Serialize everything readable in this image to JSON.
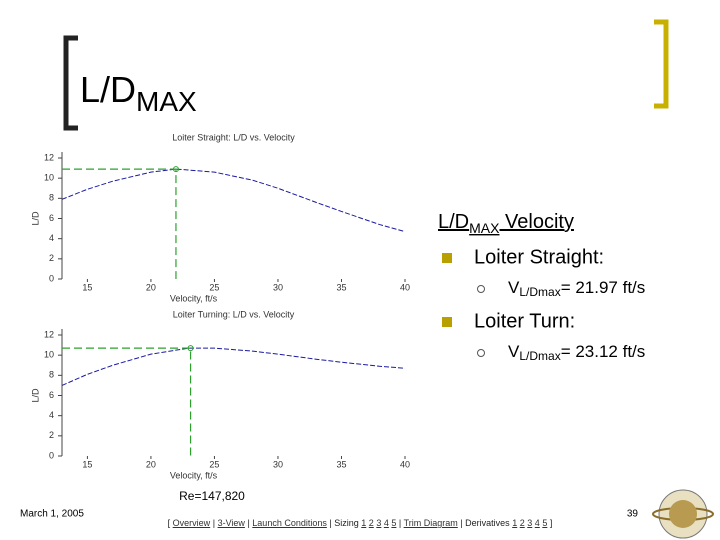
{
  "slide": {
    "title": {
      "main": "L/D",
      "sub": "MAX"
    },
    "heading": {
      "main": "L/D",
      "sub": "MAX",
      "rest": " Velocity"
    },
    "bullets": [
      {
        "text": "Loiter Straight:",
        "detail": {
          "main": "V",
          "sub": "L/Dmax",
          "rest": "= 21.97 ft/s"
        }
      },
      {
        "text": "Loiter Turn:",
        "detail": {
          "main": "V",
          "sub": "L/Dmax",
          "rest": "= 23.12 ft/s"
        }
      }
    ],
    "date": "March 1, 2005",
    "page": "39"
  },
  "footer": {
    "open": "[",
    "close": "]",
    "separator": "|",
    "items": [
      [
        "Overview"
      ],
      [
        "3-View"
      ],
      [
        "Launch Conditions"
      ],
      [
        "Sizing",
        "1",
        "2",
        "3",
        "4",
        "5"
      ],
      [
        "Trim Diagram"
      ],
      [
        "Derivatives",
        "1",
        "2",
        "3",
        "4",
        "5"
      ]
    ]
  },
  "chart_data": [
    {
      "type": "line",
      "title": "Loiter Straight: L/D vs. Velocity",
      "xlabel": "Velocity, ft/s",
      "ylabel": "L/D",
      "x": [
        13,
        15,
        17,
        20,
        22,
        25,
        28,
        30,
        33,
        35,
        38,
        40
      ],
      "series": [
        {
          "color": "#1a1aa0",
          "values": [
            7.9,
            8.9,
            9.7,
            10.6,
            10.9,
            10.6,
            9.8,
            9.0,
            7.6,
            6.7,
            5.4,
            4.7
          ]
        }
      ],
      "marker": {
        "x": 21.97,
        "y": 10.9,
        "color": "#2ca02c"
      },
      "xlim": [
        13,
        40
      ],
      "ylim": [
        0,
        12
      ],
      "xticks": [
        15,
        20,
        25,
        30,
        35,
        40
      ],
      "yticks": [
        0,
        2,
        4,
        6,
        8,
        10,
        12
      ]
    },
    {
      "type": "line",
      "title": "Loiter Turning: L/D vs. Velocity",
      "xlabel": "Velocity, ft/s",
      "ylabel": "L/D",
      "x": [
        13,
        15,
        17,
        20,
        23,
        25,
        28,
        30,
        33,
        35,
        38,
        40
      ],
      "series": [
        {
          "color": "#1a1aa0",
          "values": [
            7.0,
            8.1,
            9.0,
            10.1,
            10.7,
            10.7,
            10.4,
            10.1,
            9.6,
            9.3,
            8.9,
            8.7
          ]
        }
      ],
      "marker": {
        "x": 23.12,
        "y": 10.7,
        "color": "#2ca02c"
      },
      "annotation": "Re=147,820",
      "xlim": [
        13,
        40
      ],
      "ylim": [
        0,
        12
      ],
      "xticks": [
        15,
        20,
        25,
        30,
        35,
        40
      ],
      "yticks": [
        0,
        2,
        4,
        6,
        8,
        10,
        12
      ]
    }
  ]
}
